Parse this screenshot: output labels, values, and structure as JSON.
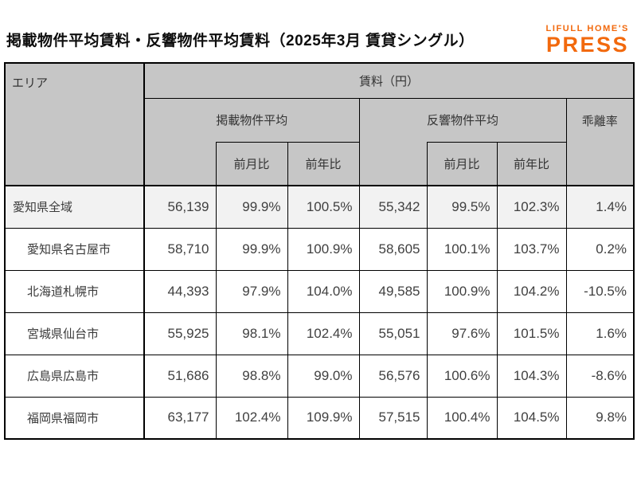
{
  "page": {
    "title": "掲載物件平均賃料・反響物件平均賃料（2025年3月 賃貸シングル）",
    "logo_line1": "LIFULL HOME'S",
    "logo_line2": "PRESS",
    "logo_color": "#F2690D"
  },
  "labels": {
    "area": "エリア",
    "rent_yen": "賃料（円）",
    "listed_avg": "掲載物件平均",
    "response_avg": "反響物件平均",
    "deviation_rate": "乖離率",
    "mom": "前月比",
    "yoy": "前年比"
  },
  "colors": {
    "header_bg": "#C6C6C6",
    "first_row_bg": "#F2F2F2",
    "border": "#000000",
    "logo_orange": "#F2690D"
  },
  "chart_data": {
    "type": "table",
    "title": "掲載物件平均賃料・反響物件平均賃料（2025年3月 賃貸シングル）",
    "column_groups": [
      "エリア",
      "掲載物件平均",
      "反響物件平均",
      "乖離率"
    ],
    "columns": [
      "エリア",
      "掲載物件平均 賃料(円)",
      "掲載 前月比",
      "掲載 前年比",
      "反響物件平均 賃料(円)",
      "反響 前月比",
      "反響 前年比",
      "乖離率"
    ],
    "rows": [
      {
        "area": "愛知県全域",
        "indent": false,
        "values": [
          "56,139",
          "99.9%",
          "100.5%",
          "55,342",
          "99.5%",
          "102.3%",
          "1.4%"
        ]
      },
      {
        "area": "愛知県名古屋市",
        "indent": true,
        "values": [
          "58,710",
          "99.9%",
          "100.9%",
          "58,605",
          "100.1%",
          "103.7%",
          "0.2%"
        ]
      },
      {
        "area": "北海道札幌市",
        "indent": true,
        "values": [
          "44,393",
          "97.9%",
          "104.0%",
          "49,585",
          "100.9%",
          "104.2%",
          "-10.5%"
        ]
      },
      {
        "area": "宮城県仙台市",
        "indent": true,
        "values": [
          "55,925",
          "98.1%",
          "102.4%",
          "55,051",
          "97.6%",
          "101.5%",
          "1.6%"
        ]
      },
      {
        "area": "広島県広島市",
        "indent": true,
        "values": [
          "51,686",
          "98.8%",
          "99.0%",
          "56,576",
          "100.6%",
          "104.3%",
          "-8.6%"
        ]
      },
      {
        "area": "福岡県福岡市",
        "indent": true,
        "values": [
          "63,177",
          "102.4%",
          "109.9%",
          "57,515",
          "100.4%",
          "104.5%",
          "9.8%"
        ]
      }
    ]
  }
}
